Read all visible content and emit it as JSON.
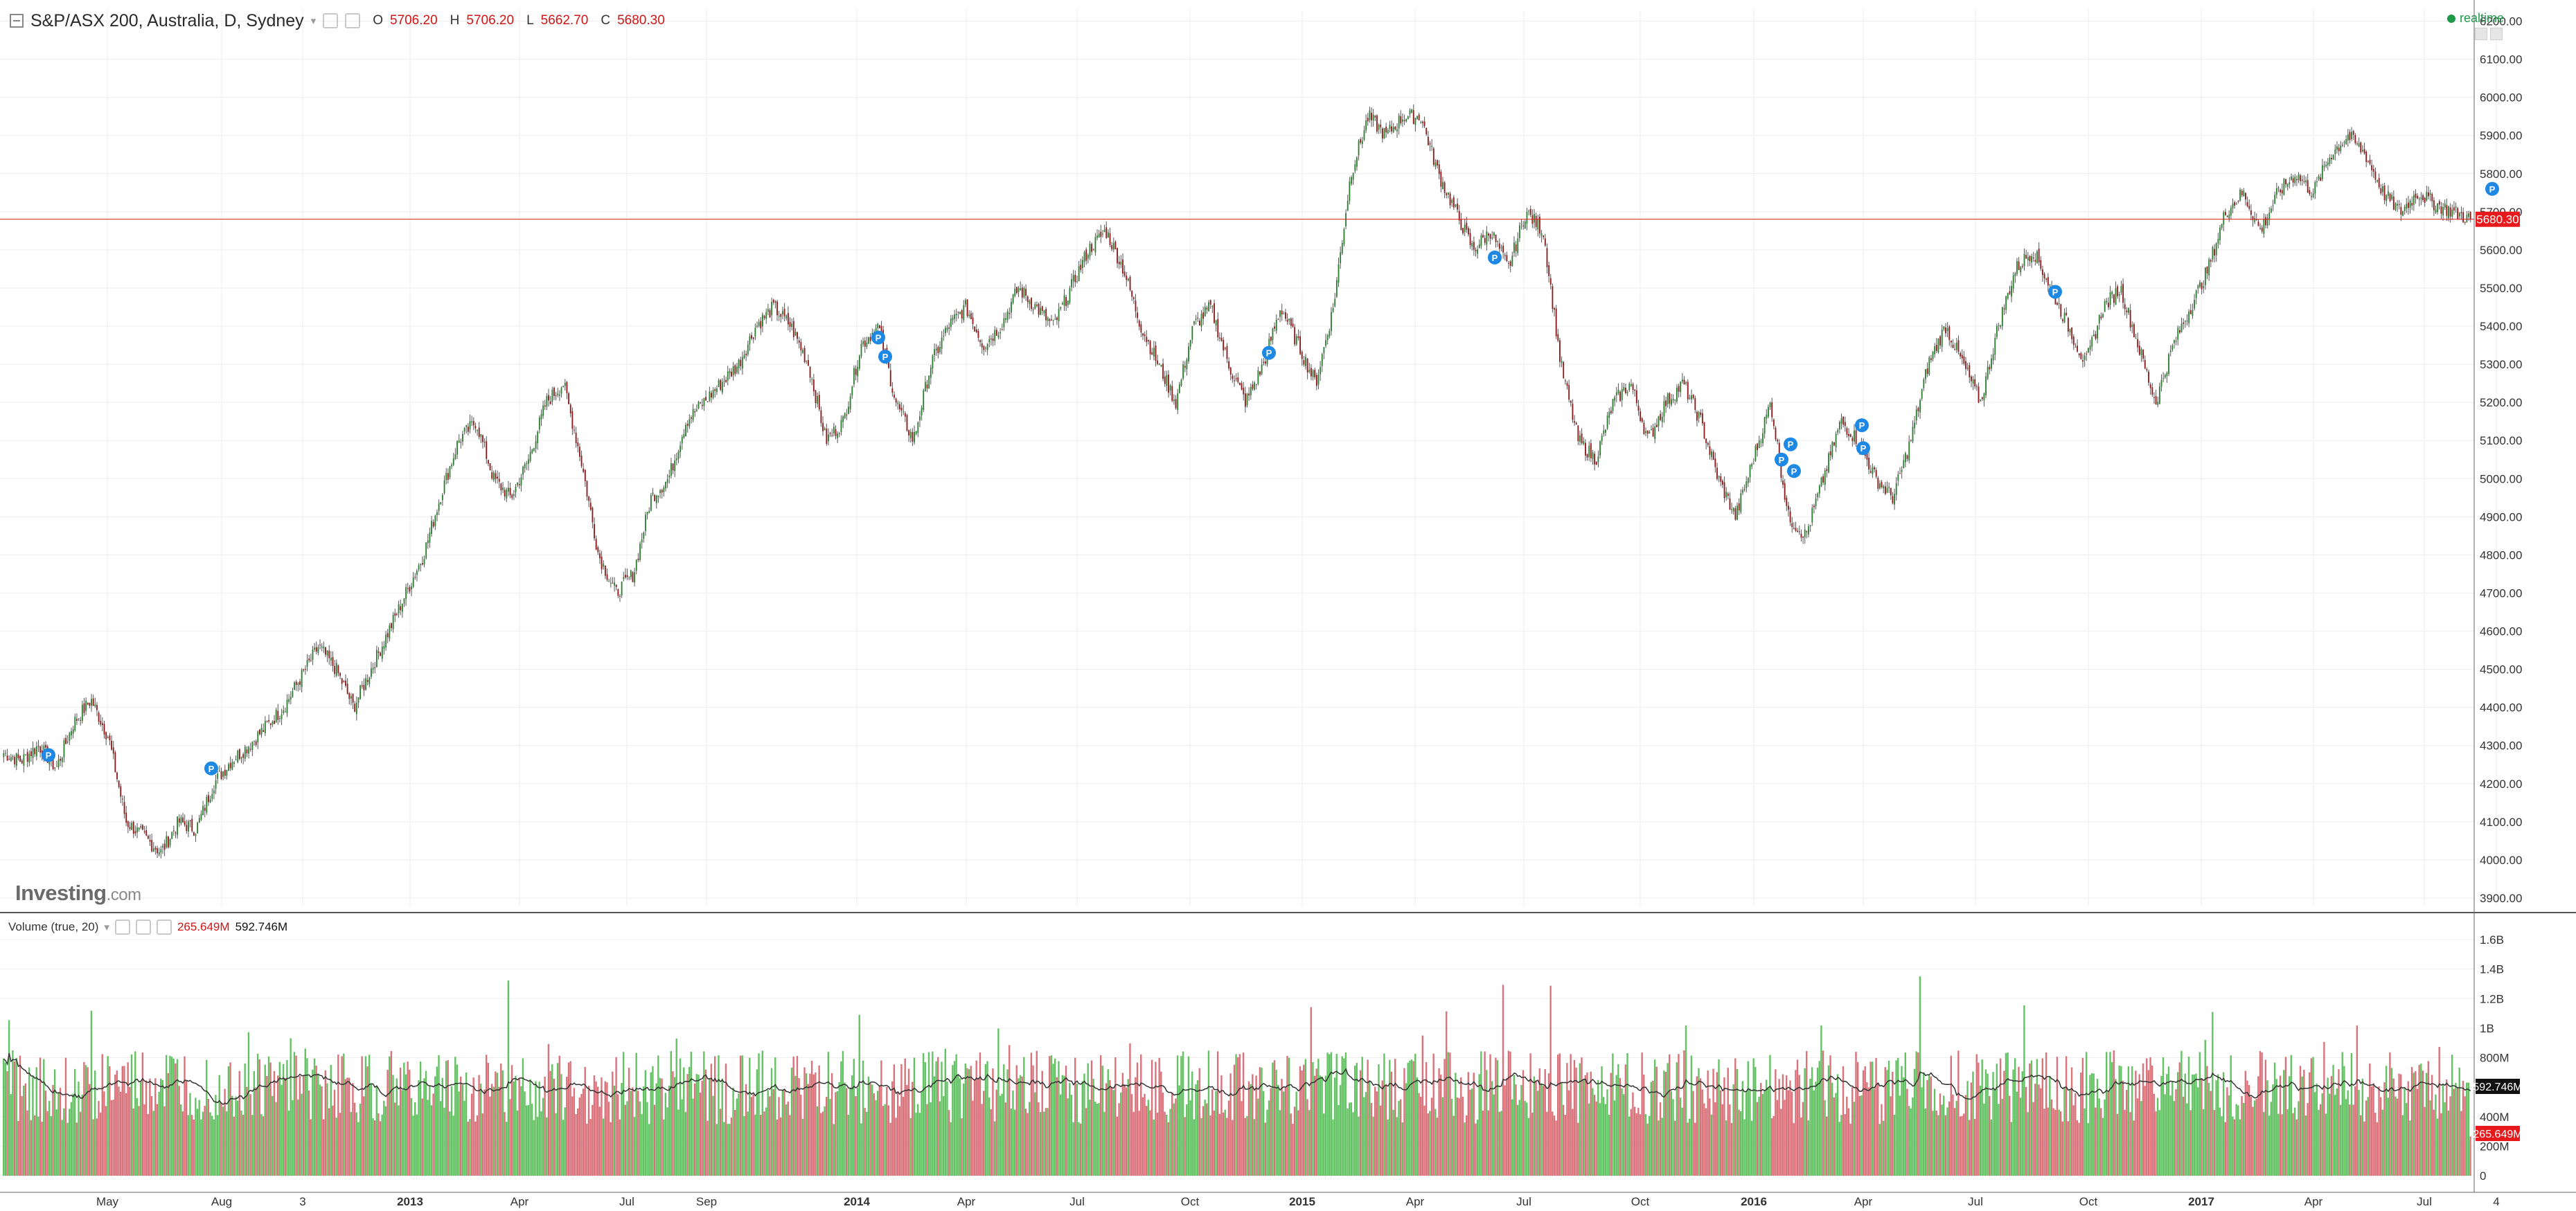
{
  "header": {
    "title": "S&P/ASX 200, Australia, D, Sydney",
    "open_label": "O",
    "open": "5706.20",
    "high_label": "H",
    "high": "5706.20",
    "low_label": "L",
    "low": "5662.70",
    "close_label": "C",
    "close": "5680.30",
    "realtime": "realtime"
  },
  "volume_header": {
    "title": "Volume (true, 20)",
    "value": "265.649M",
    "ma_value": "592.746M"
  },
  "logo": {
    "name": "Investing",
    "suffix": ".com"
  },
  "colors": {
    "up": "#2e7d32",
    "down": "#8b1a1a",
    "wick": "#555555",
    "vol_up": "#63c263",
    "vol_down": "#d9727a",
    "ma": "#333333",
    "last_price": "#e8191c",
    "grid": "#eeeeee"
  },
  "chart_data": [
    {
      "type": "candlestick",
      "title": "S&P/ASX 200, Australia, D, Sydney",
      "ylim": [
        3880,
        6230
      ],
      "y_ticks": [
        "6200.00",
        "6100.00",
        "6000.00",
        "5900.00",
        "5800.00",
        "5700.00",
        "5600.00",
        "5500.00",
        "5400.00",
        "5300.00",
        "5200.00",
        "5100.00",
        "5000.00",
        "4900.00",
        "4800.00",
        "4700.00",
        "4600.00",
        "4500.00",
        "4400.00",
        "4300.00",
        "4200.00",
        "4100.00",
        "4000.00",
        "3900.00"
      ],
      "x_ticks": [
        "May",
        "Aug",
        "3",
        "2013",
        "Apr",
        "Jul",
        "Sep",
        "2014",
        "Apr",
        "Jul",
        "Oct",
        "2015",
        "Apr",
        "Jul",
        "Oct",
        "2016",
        "Apr",
        "Jul",
        "Oct",
        "2017",
        "Apr",
        "Jul",
        "4"
      ],
      "last_price": "5680.30",
      "close_series": [
        4280,
        4260,
        4300,
        4240,
        4360,
        4420,
        4320,
        4100,
        4060,
        4020,
        4100,
        4080,
        4200,
        4260,
        4300,
        4350,
        4400,
        4480,
        4560,
        4500,
        4400,
        4500,
        4600,
        4700,
        4800,
        4960,
        5100,
        5150,
        5000,
        4950,
        5050,
        5200,
        5250,
        5050,
        4800,
        4700,
        4750,
        4950,
        5000,
        5150,
        5200,
        5250,
        5300,
        5400,
        5450,
        5400,
        5300,
        5100,
        5150,
        5350,
        5400,
        5200,
        5100,
        5300,
        5400,
        5450,
        5350,
        5400,
        5500,
        5450,
        5400,
        5500,
        5600,
        5650,
        5550,
        5400,
        5300,
        5200,
        5400,
        5450,
        5300,
        5200,
        5300,
        5450,
        5350,
        5250,
        5450,
        5800,
        5950,
        5900,
        5950,
        5950,
        5800,
        5700,
        5600,
        5650,
        5550,
        5700,
        5650,
        5300,
        5100,
        5050,
        5200,
        5250,
        5100,
        5200,
        5250,
        5150,
        5000,
        4900,
        5050,
        5200,
        4900,
        4850,
        5000,
        5150,
        5100,
        5000,
        4950,
        5100,
        5300,
        5400,
        5300,
        5200,
        5400,
        5550,
        5600,
        5500,
        5400,
        5300,
        5450,
        5500,
        5350,
        5200,
        5350,
        5450,
        5550,
        5700,
        5750,
        5650,
        5750,
        5800,
        5750,
        5850,
        5900,
        5850,
        5750,
        5700,
        5750,
        5720,
        5700,
        5680
      ]
    },
    {
      "type": "bar",
      "title": "Volume (true, 20)",
      "ylim": [
        0,
        1680000000
      ],
      "y_ticks": [
        "1.6B",
        "1.4B",
        "1.2B",
        "1B",
        "800M",
        "600M",
        "400M",
        "200M",
        "0"
      ],
      "last_value": "265.649M",
      "ma_value": "592.746M",
      "ma_period": 20
    }
  ]
}
